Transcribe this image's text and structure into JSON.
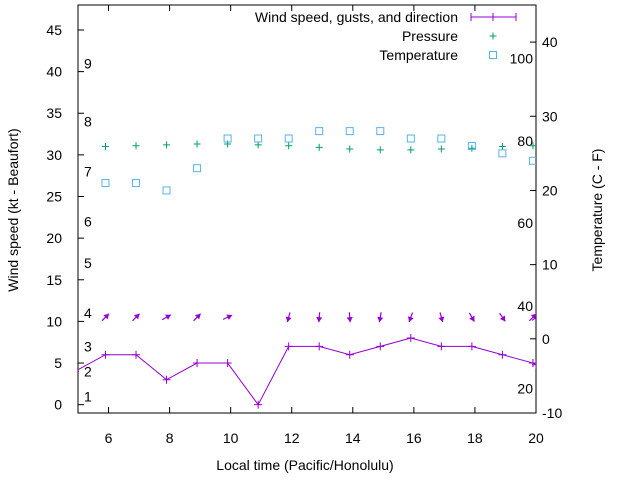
{
  "chart_data": {
    "type": "line",
    "xlabel": "Local time (Pacific/Honolulu)",
    "ylabel": "Wind speed (kt - Beaufort)",
    "y2label": "Temperature (C - F)",
    "xlim": [
      5,
      20
    ],
    "ylim": [
      -1,
      48
    ],
    "y2lim": [
      -10,
      45
    ],
    "xticks": [
      6,
      8,
      10,
      12,
      14,
      16,
      18,
      20
    ],
    "yticks": [
      0,
      5,
      10,
      15,
      20,
      25,
      30,
      35,
      40,
      45
    ],
    "y2ticks": [
      -10,
      0,
      10,
      20,
      30,
      40
    ],
    "beaufort_labels": [
      {
        "text": "1",
        "wind": 1
      },
      {
        "text": "2",
        "wind": 4
      },
      {
        "text": "3",
        "wind": 7
      },
      {
        "text": "4",
        "wind": 11
      },
      {
        "text": "5",
        "wind": 17
      },
      {
        "text": "6",
        "wind": 22
      },
      {
        "text": "7",
        "wind": 28
      },
      {
        "text": "8",
        "wind": 34
      },
      {
        "text": "9",
        "wind": 41
      }
    ],
    "fahrenheit_labels": [
      {
        "text": "20",
        "celsius": -6.7
      },
      {
        "text": "40",
        "celsius": 4.4
      },
      {
        "text": "60",
        "celsius": 15.6
      },
      {
        "text": "80",
        "celsius": 26.7
      },
      {
        "text": "100",
        "celsius": 37.8
      }
    ],
    "legend": [
      {
        "label": "Wind speed, gusts, and direction",
        "marker": "line-plus",
        "color": "#9400d3"
      },
      {
        "label": "Pressure",
        "marker": "plus",
        "color": "#009e73"
      },
      {
        "label": "Temperature",
        "marker": "square",
        "color": "#56b4e9"
      }
    ],
    "series": [
      {
        "name": "Wind speed, gusts, and direction",
        "color": "#9400d3",
        "x": [
          4.9,
          5.9,
          6.9,
          7.9,
          8.9,
          9.9,
          10.9,
          11.9,
          12.9,
          13.9,
          14.9,
          15.9,
          16.9,
          17.9,
          18.9,
          19.9,
          20
        ],
        "values": [
          4,
          6,
          6,
          3,
          5,
          5,
          0,
          7,
          7,
          6,
          7,
          8,
          7,
          7,
          6,
          5,
          4.8
        ],
        "direction_deg": [
          null,
          225,
          225,
          240,
          225,
          245,
          null,
          15,
          5,
          355,
          10,
          20,
          345,
          330,
          325,
          225,
          230
        ]
      },
      {
        "name": "Pressure",
        "color": "#009e73",
        "x": [
          5.9,
          6.9,
          7.9,
          8.9,
          9.9,
          10.9,
          11.9,
          12.9,
          13.9,
          14.9,
          15.9,
          16.9,
          17.9,
          18.9,
          19.9
        ],
        "values": [
          31.0,
          31.1,
          31.2,
          31.3,
          31.3,
          31.2,
          31.1,
          30.9,
          30.7,
          30.6,
          30.6,
          30.7,
          30.8,
          31.0,
          31.1
        ]
      },
      {
        "name": "Temperature",
        "color": "#56b4e9",
        "x": [
          5.9,
          6.9,
          7.9,
          8.9,
          9.9,
          10.9,
          11.9,
          12.9,
          13.9,
          14.9,
          15.9,
          16.9,
          17.9,
          18.9,
          19.9
        ],
        "values": [
          21,
          21,
          20,
          23,
          27,
          27,
          27,
          28,
          28,
          28,
          27,
          27,
          26,
          25,
          24
        ],
        "axis": "y2"
      }
    ]
  }
}
